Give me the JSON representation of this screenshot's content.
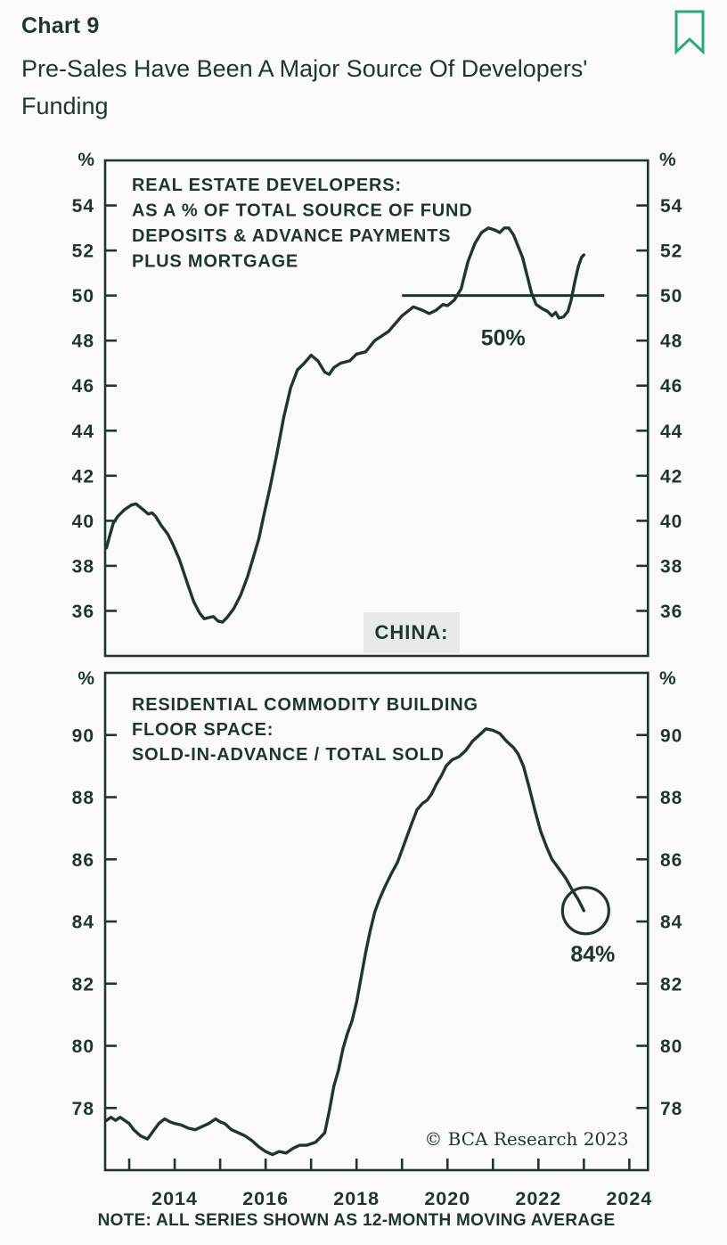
{
  "header": {
    "chart_label": "Chart 9",
    "title": "Pre-Sales Have Been A Major Source Of Developers' Funding"
  },
  "colors": {
    "ink": "#1d372f",
    "red": "#c4262b",
    "green": "#2ba778",
    "bookmark_green": "#2aa87c",
    "china_badge_bg": "#e8eae5",
    "page_bg": "#fafaf7"
  },
  "china_label": "CHINA:",
  "note": "NOTE: ALL SERIES SHOWN AS 12-MONTH MOVING AVERAGE",
  "watermark": "© BCA Research 2023",
  "x_axis": {
    "tick_years": [
      2013,
      2014,
      2015,
      2016,
      2017,
      2018,
      2019,
      2020,
      2021,
      2022,
      2023,
      2024
    ],
    "label_years": [
      2014,
      2016,
      2018,
      2020,
      2022,
      2024
    ],
    "xlim": [
      2012.47,
      2024.41
    ]
  },
  "chart_data": [
    {
      "type": "line",
      "panel": "top",
      "title_lines": [
        "REAL ESTATE DEVELOPERS:",
        "AS A % OF TOTAL SOURCE OF FUND",
        "DEPOSITS & ADVANCE PAYMENTS",
        "PLUS MORTGAGE"
      ],
      "unit": "%",
      "ylim": [
        34,
        56
      ],
      "yticks": [
        36,
        38,
        40,
        42,
        44,
        46,
        48,
        50,
        52,
        54
      ],
      "grid": false,
      "reference_line": {
        "value": 50,
        "x_start": 2019.0,
        "x_end": 2023.45,
        "label": "50%"
      },
      "series": [
        {
          "name": "Deposits & advance payments plus mortgage, % of total source of fund",
          "points": [
            [
              2012.5,
              38.8
            ],
            [
              2012.58,
              39.4
            ],
            [
              2012.65,
              39.9
            ],
            [
              2012.75,
              40.2
            ],
            [
              2012.9,
              40.5
            ],
            [
              2013.05,
              40.7
            ],
            [
              2013.15,
              40.75
            ],
            [
              2013.3,
              40.5
            ],
            [
              2013.42,
              40.3
            ],
            [
              2013.5,
              40.35
            ],
            [
              2013.58,
              40.2
            ],
            [
              2013.7,
              39.8
            ],
            [
              2013.85,
              39.4
            ],
            [
              2013.95,
              39.0
            ],
            [
              2014.1,
              38.3
            ],
            [
              2014.2,
              37.7
            ],
            [
              2014.3,
              37.1
            ],
            [
              2014.42,
              36.4
            ],
            [
              2014.55,
              35.9
            ],
            [
              2014.65,
              35.65
            ],
            [
              2014.75,
              35.7
            ],
            [
              2014.85,
              35.75
            ],
            [
              2014.95,
              35.55
            ],
            [
              2015.05,
              35.5
            ],
            [
              2015.15,
              35.7
            ],
            [
              2015.3,
              36.1
            ],
            [
              2015.45,
              36.7
            ],
            [
              2015.6,
              37.5
            ],
            [
              2015.72,
              38.3
            ],
            [
              2015.85,
              39.2
            ],
            [
              2015.95,
              40.15
            ],
            [
              2016.1,
              41.5
            ],
            [
              2016.25,
              43.0
            ],
            [
              2016.4,
              44.6
            ],
            [
              2016.55,
              45.9
            ],
            [
              2016.7,
              46.7
            ],
            [
              2016.85,
              47.0
            ],
            [
              2017.0,
              47.35
            ],
            [
              2017.15,
              47.1
            ],
            [
              2017.3,
              46.6
            ],
            [
              2017.4,
              46.5
            ],
            [
              2017.5,
              46.8
            ],
            [
              2017.65,
              47.0
            ],
            [
              2017.85,
              47.1
            ],
            [
              2018.0,
              47.4
            ],
            [
              2018.2,
              47.5
            ],
            [
              2018.4,
              48.0
            ],
            [
              2018.7,
              48.4
            ],
            [
              2019.0,
              49.1
            ],
            [
              2019.25,
              49.5
            ],
            [
              2019.45,
              49.35
            ],
            [
              2019.6,
              49.2
            ],
            [
              2019.75,
              49.35
            ],
            [
              2019.9,
              49.6
            ],
            [
              2020.0,
              49.55
            ],
            [
              2020.15,
              49.8
            ],
            [
              2020.3,
              50.3
            ],
            [
              2020.45,
              51.5
            ],
            [
              2020.6,
              52.3
            ],
            [
              2020.75,
              52.8
            ],
            [
              2020.9,
              53.0
            ],
            [
              2021.05,
              52.9
            ],
            [
              2021.15,
              52.8
            ],
            [
              2021.25,
              53.0
            ],
            [
              2021.35,
              53.0
            ],
            [
              2021.45,
              52.7
            ],
            [
              2021.55,
              52.2
            ],
            [
              2021.65,
              51.7
            ],
            [
              2021.75,
              50.9
            ],
            [
              2021.85,
              50.1
            ],
            [
              2021.95,
              49.6
            ],
            [
              2022.1,
              49.4
            ],
            [
              2022.2,
              49.3
            ],
            [
              2022.3,
              49.1
            ],
            [
              2022.38,
              49.25
            ],
            [
              2022.45,
              49.0
            ],
            [
              2022.55,
              49.05
            ],
            [
              2022.65,
              49.3
            ],
            [
              2022.72,
              49.8
            ],
            [
              2022.8,
              50.6
            ],
            [
              2022.88,
              51.3
            ],
            [
              2022.95,
              51.7
            ],
            [
              2023.0,
              51.8
            ]
          ]
        }
      ]
    },
    {
      "type": "line",
      "panel": "bottom",
      "title_lines": [
        "RESIDENTIAL COMMODITY BUILDING",
        "FLOOR SPACE:",
        "SOLD-IN-ADVANCE / TOTAL SOLD"
      ],
      "unit": "%",
      "ylim": [
        76,
        92
      ],
      "yticks": [
        78,
        80,
        82,
        84,
        86,
        88,
        90
      ],
      "grid": false,
      "end_annotation": {
        "label": "84%",
        "value": 84.35,
        "year": 2023.0,
        "circle_radius": 26
      },
      "series": [
        {
          "name": "Sold-in-advance / total sold",
          "points": [
            [
              2012.5,
              77.6
            ],
            [
              2012.6,
              77.7
            ],
            [
              2012.7,
              77.6
            ],
            [
              2012.8,
              77.7
            ],
            [
              2012.9,
              77.6
            ],
            [
              2013.0,
              77.5
            ],
            [
              2013.1,
              77.3
            ],
            [
              2013.25,
              77.1
            ],
            [
              2013.4,
              77.0
            ],
            [
              2013.5,
              77.2
            ],
            [
              2013.65,
              77.5
            ],
            [
              2013.78,
              77.65
            ],
            [
              2013.9,
              77.55
            ],
            [
              2014.0,
              77.5
            ],
            [
              2014.15,
              77.45
            ],
            [
              2014.3,
              77.35
            ],
            [
              2014.45,
              77.3
            ],
            [
              2014.6,
              77.4
            ],
            [
              2014.75,
              77.5
            ],
            [
              2014.9,
              77.65
            ],
            [
              2015.0,
              77.55
            ],
            [
              2015.1,
              77.5
            ],
            [
              2015.25,
              77.3
            ],
            [
              2015.4,
              77.2
            ],
            [
              2015.55,
              77.1
            ],
            [
              2015.7,
              76.95
            ],
            [
              2015.85,
              76.75
            ],
            [
              2016.0,
              76.6
            ],
            [
              2016.15,
              76.5
            ],
            [
              2016.3,
              76.6
            ],
            [
              2016.45,
              76.55
            ],
            [
              2016.6,
              76.7
            ],
            [
              2016.75,
              76.8
            ],
            [
              2016.9,
              76.8
            ],
            [
              2017.0,
              76.85
            ],
            [
              2017.1,
              76.9
            ],
            [
              2017.2,
              77.05
            ],
            [
              2017.3,
              77.2
            ],
            [
              2017.4,
              77.9
            ],
            [
              2017.5,
              78.7
            ],
            [
              2017.6,
              79.2
            ],
            [
              2017.7,
              79.9
            ],
            [
              2017.8,
              80.4
            ],
            [
              2017.9,
              80.8
            ],
            [
              2018.0,
              81.4
            ],
            [
              2018.1,
              82.2
            ],
            [
              2018.2,
              83.0
            ],
            [
              2018.3,
              83.7
            ],
            [
              2018.4,
              84.3
            ],
            [
              2018.5,
              84.7
            ],
            [
              2018.62,
              85.1
            ],
            [
              2018.75,
              85.5
            ],
            [
              2018.9,
              85.9
            ],
            [
              2019.05,
              86.5
            ],
            [
              2019.2,
              87.1
            ],
            [
              2019.33,
              87.6
            ],
            [
              2019.45,
              87.8
            ],
            [
              2019.55,
              87.9
            ],
            [
              2019.65,
              88.1
            ],
            [
              2019.75,
              88.4
            ],
            [
              2019.87,
              88.7
            ],
            [
              2019.97,
              89.0
            ],
            [
              2020.1,
              89.2
            ],
            [
              2020.25,
              89.3
            ],
            [
              2020.4,
              89.5
            ],
            [
              2020.55,
              89.8
            ],
            [
              2020.7,
              90.0
            ],
            [
              2020.85,
              90.2
            ],
            [
              2021.0,
              90.15
            ],
            [
              2021.15,
              90.05
            ],
            [
              2021.3,
              89.8
            ],
            [
              2021.45,
              89.6
            ],
            [
              2021.55,
              89.4
            ],
            [
              2021.67,
              89.0
            ],
            [
              2021.8,
              88.3
            ],
            [
              2021.92,
              87.6
            ],
            [
              2022.05,
              86.9
            ],
            [
              2022.18,
              86.4
            ],
            [
              2022.3,
              86.0
            ],
            [
              2022.45,
              85.7
            ],
            [
              2022.6,
              85.4
            ],
            [
              2022.75,
              85.0
            ],
            [
              2022.88,
              84.7
            ],
            [
              2023.0,
              84.35
            ]
          ]
        }
      ]
    }
  ]
}
